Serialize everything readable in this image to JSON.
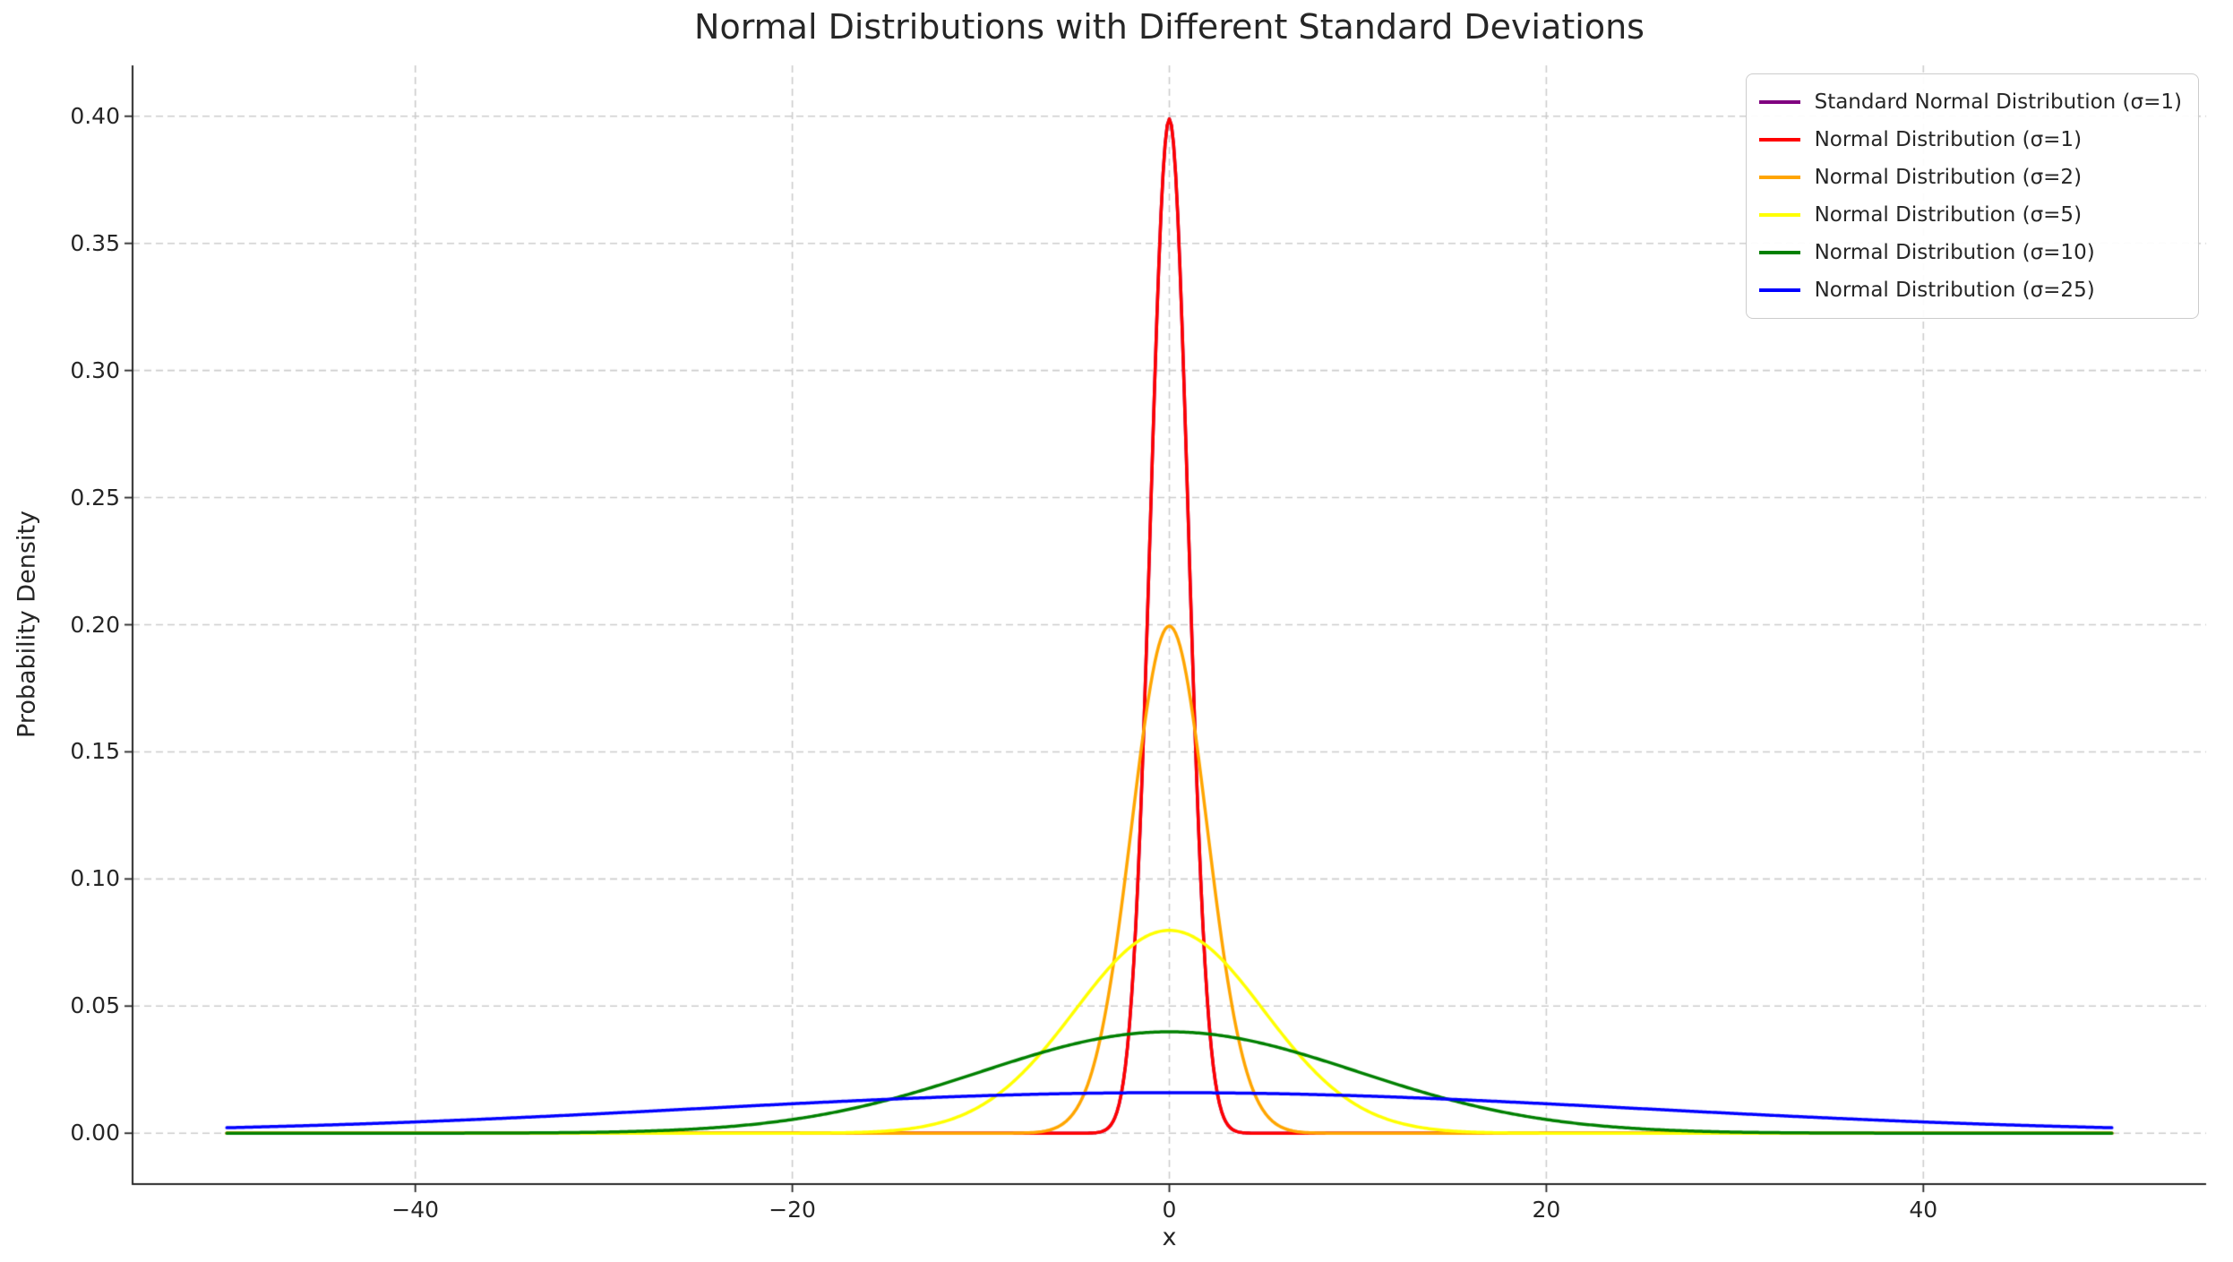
{
  "chart_data": {
    "type": "line",
    "title": "Normal Distributions with Different Standard Deviations",
    "xlabel": "x",
    "ylabel": "Probability Density",
    "xlim": [
      -55,
      55
    ],
    "ylim": [
      -0.02,
      0.42
    ],
    "x_range": [
      -50,
      50
    ],
    "xticks": [
      -40,
      -20,
      0,
      20,
      40
    ],
    "yticks": [
      0.0,
      0.05,
      0.1,
      0.15,
      0.2,
      0.25,
      0.3,
      0.35,
      0.4
    ],
    "grid": {
      "visible": true,
      "style": "dashed",
      "color": "#cccccc"
    },
    "legend": {
      "location": "upper right"
    },
    "series": [
      {
        "name": "Standard Normal Distribution (σ=1)",
        "color": "#800080",
        "mean": 0,
        "sigma": 1,
        "peak_y": 0.3989
      },
      {
        "name": "Normal Distribution (σ=1)",
        "color": "#ff0000",
        "mean": 0,
        "sigma": 1,
        "peak_y": 0.3989
      },
      {
        "name": "Normal Distribution (σ=2)",
        "color": "#ffa500",
        "mean": 0,
        "sigma": 2,
        "peak_y": 0.1995
      },
      {
        "name": "Normal Distribution (σ=5)",
        "color": "#ffff00",
        "mean": 0,
        "sigma": 5,
        "peak_y": 0.0798
      },
      {
        "name": "Normal Distribution (σ=10)",
        "color": "#008000",
        "mean": 0,
        "sigma": 10,
        "peak_y": 0.0399
      },
      {
        "name": "Normal Distribution (σ=25)",
        "color": "#0000ff",
        "mean": 0,
        "sigma": 25,
        "peak_y": 0.016
      }
    ]
  }
}
